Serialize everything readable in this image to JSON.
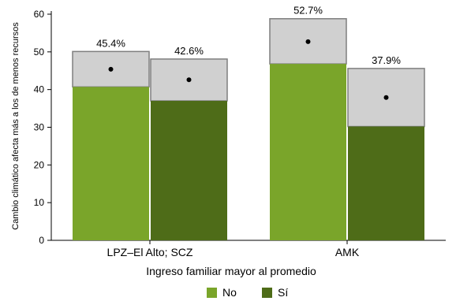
{
  "chart_data": {
    "type": "bar",
    "title": "",
    "xlabel": "Ingreso familiar mayor al promedio",
    "ylabel": "Cambio climático afecta más a los de menos recursos",
    "ylim": [
      0,
      60
    ],
    "yticks": [
      0,
      10,
      20,
      30,
      40,
      50,
      60
    ],
    "grid": false,
    "legend_position": "bottom",
    "categories": [
      "LPZ–El Alto; SCZ",
      "AMK"
    ],
    "series": [
      {
        "name": "No",
        "color": "#7aa52a",
        "values": [
          40.7,
          46.8
        ],
        "ci_upper": [
          50.1,
          58.8
        ],
        "point_estimate": [
          45.4,
          52.7
        ],
        "labels": [
          "45.4%",
          "52.7%"
        ]
      },
      {
        "name": "Sí",
        "color": "#4e6c18",
        "values": [
          37.0,
          30.2
        ],
        "ci_upper": [
          48.1,
          45.6
        ],
        "point_estimate": [
          42.6,
          37.9
        ],
        "labels": [
          "42.6%",
          "37.9%"
        ]
      }
    ],
    "ci_color": "#d0d0d0"
  }
}
